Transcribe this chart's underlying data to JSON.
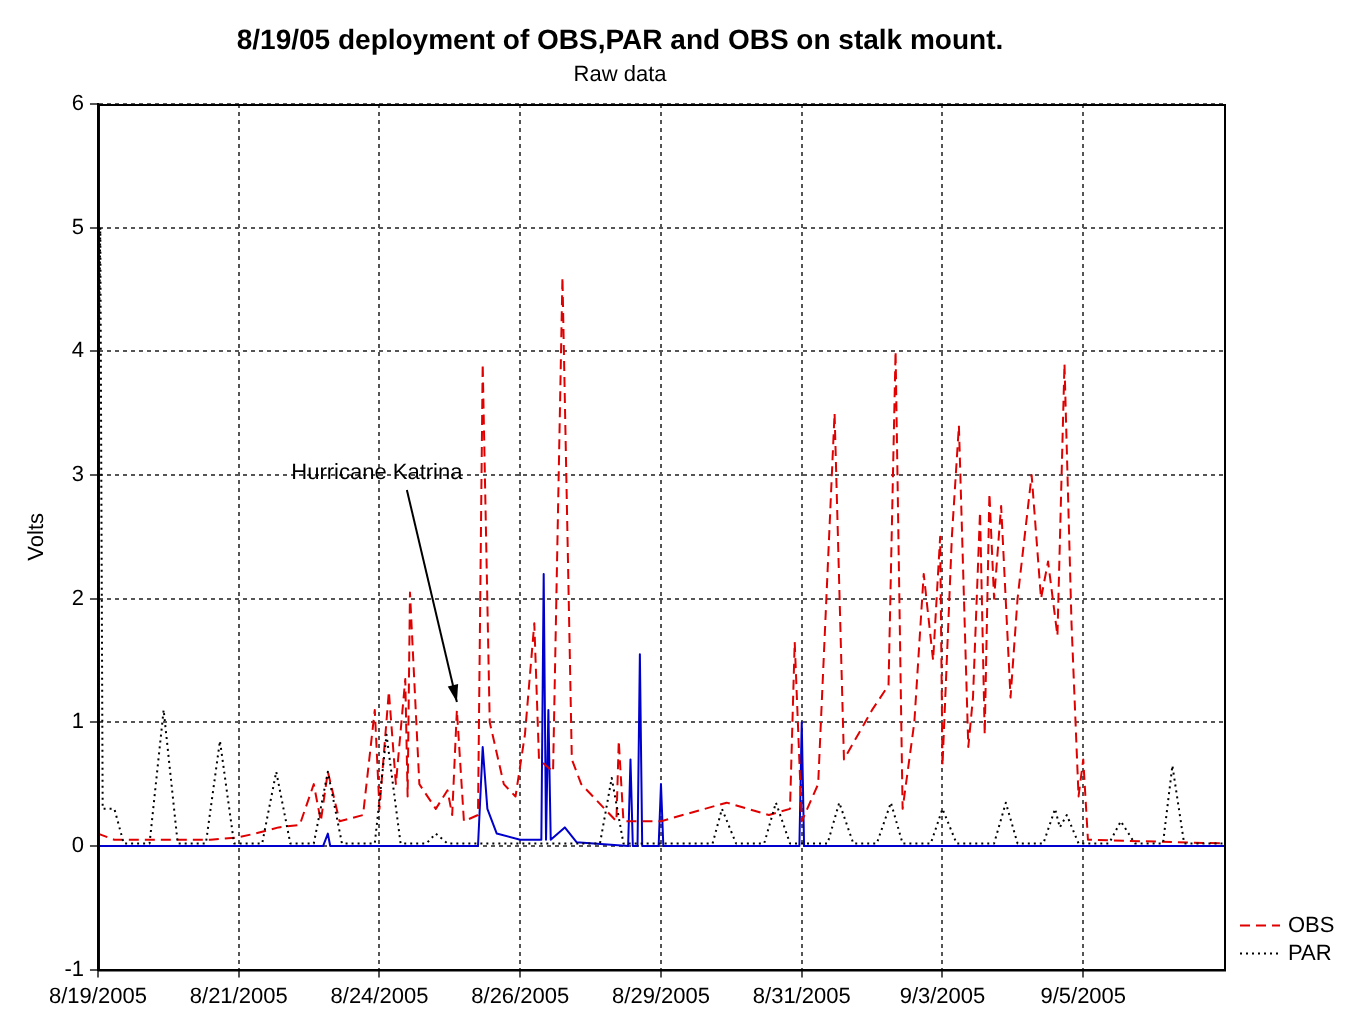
{
  "chart_data": {
    "type": "line",
    "title": "8/19/05 deployment of OBS,PAR and OBS on stalk mount.",
    "subtitle": "Raw data",
    "ylabel": "Volts",
    "xlim": [
      "2005-08-19",
      "2005-09-08"
    ],
    "xticks": [
      {
        "value": "2005-08-19T00:00",
        "label": "8/19/2005"
      },
      {
        "value": "2005-08-21T12:00",
        "label": "8/21/2005"
      },
      {
        "value": "2005-08-24T00:00",
        "label": "8/24/2005"
      },
      {
        "value": "2005-08-26T12:00",
        "label": "8/26/2005"
      },
      {
        "value": "2005-08-29T00:00",
        "label": "8/29/2005"
      },
      {
        "value": "2005-08-31T12:00",
        "label": "8/31/2005"
      },
      {
        "value": "2005-09-03T00:00",
        "label": "9/3/2005"
      },
      {
        "value": "2005-09-05T12:00",
        "label": "9/5/2005"
      }
    ],
    "ylim": [
      -1,
      6
    ],
    "yticks": [
      -1,
      0,
      1,
      2,
      3,
      4,
      5,
      6
    ],
    "grid": true,
    "legend": "bottom right",
    "marker": "none",
    "annotations": [
      {
        "text": "Hurricane Katrina",
        "x": "2005-08-25T09:00",
        "y": 1.1
      }
    ],
    "series": [
      {
        "color": "#0000cc",
        "line_style": "solid",
        "x": [
          "2005-08-19T00:00",
          "2005-08-23T00:00",
          "2005-08-23T02:00",
          "2005-08-23T03:00",
          "2005-08-25T18:00",
          "2005-08-25T20:00",
          "2005-08-25T22:00",
          "2005-08-26T02:00",
          "2005-08-26T12:00",
          "2005-08-26T21:00",
          "2005-08-26T22:00",
          "2005-08-26T23:00",
          "2005-08-27T00:00",
          "2005-08-27T01:00",
          "2005-08-27T07:00",
          "2005-08-27T12:00",
          "2005-08-28T10:00",
          "2005-08-28T11:00",
          "2005-08-28T12:00",
          "2005-08-28T14:00",
          "2005-08-28T15:00",
          "2005-08-28T16:00",
          "2005-08-28T23:00",
          "2005-08-29T00:00",
          "2005-08-29T01:00",
          "2005-08-31T11:00",
          "2005-08-31T12:00",
          "2005-08-31T13:00",
          "2005-09-08T00:00"
        ],
        "values": [
          0,
          0,
          0.1,
          0,
          0,
          0.8,
          0.3,
          0.1,
          0.05,
          0.05,
          2.2,
          0.05,
          1.1,
          0.05,
          0.15,
          0.03,
          0,
          0.7,
          0,
          0,
          1.55,
          0,
          0,
          0.5,
          0,
          0,
          1.0,
          0,
          0
        ]
      },
      {
        "name": "OBS",
        "color": "#e00000",
        "line_style": "dashed",
        "x": [
          "2005-08-19T00:00",
          "2005-08-19T07:00",
          "2005-08-20T00:00",
          "2005-08-21T00:00",
          "2005-08-21T12:00",
          "2005-08-21T19:00",
          "2005-08-22T05:00",
          "2005-08-22T14:00",
          "2005-08-22T20:00",
          "2005-08-22T23:00",
          "2005-08-23T02:00",
          "2005-08-23T07:00",
          "2005-08-23T17:00",
          "2005-08-23T22:00",
          "2005-08-24T00:00",
          "2005-08-24T04:00",
          "2005-08-24T07:00",
          "2005-08-24T11:00",
          "2005-08-24T12:00",
          "2005-08-24T13:00",
          "2005-08-24T17:00",
          "2005-08-25T00:00",
          "2005-08-25T05:00",
          "2005-08-25T07:00",
          "2005-08-25T09:00",
          "2005-08-25T12:00",
          "2005-08-25T18:00",
          "2005-08-25T20:00",
          "2005-08-25T23:00",
          "2005-08-26T05:00",
          "2005-08-26T10:00",
          "2005-08-26T14:00",
          "2005-08-26T18:00",
          "2005-08-26T20:00",
          "2005-08-27T02:00",
          "2005-08-27T06:00",
          "2005-08-27T10:00",
          "2005-08-27T14:00",
          "2005-08-28T00:00",
          "2005-08-28T05:00",
          "2005-08-28T06:00",
          "2005-08-28T08:00",
          "2005-08-29T00:00",
          "2005-08-30T04:00",
          "2005-08-30T22:00",
          "2005-08-31T07:00",
          "2005-08-31T09:00",
          "2005-08-31T12:00",
          "2005-08-31T19:00",
          "2005-09-01T02:00",
          "2005-09-01T06:00",
          "2005-09-01T18:00",
          "2005-09-02T01:00",
          "2005-09-02T04:00",
          "2005-09-02T07:00",
          "2005-09-02T12:00",
          "2005-09-02T16:00",
          "2005-09-02T20:00",
          "2005-09-02T23:00",
          "2005-09-03T00:00",
          "2005-09-03T04:00",
          "2005-09-03T07:00",
          "2005-09-03T11:00",
          "2005-09-03T13:00",
          "2005-09-03T16:00",
          "2005-09-03T18:00",
          "2005-09-03T20:00",
          "2005-09-03T22:00",
          "2005-09-04T01:00",
          "2005-09-04T05:00",
          "2005-09-04T08:00",
          "2005-09-04T11:00",
          "2005-09-04T14:00",
          "2005-09-04T18:00",
          "2005-09-04T21:00",
          "2005-09-05T01:00",
          "2005-09-05T04:00",
          "2005-09-05T07:00",
          "2005-09-05T10:00",
          "2005-09-05T12:00",
          "2005-09-05T14:00",
          "2005-09-08T00:00"
        ],
        "values": [
          0.1,
          0.05,
          0.05,
          0.05,
          0.07,
          0.1,
          0.15,
          0.17,
          0.5,
          0.2,
          0.6,
          0.2,
          0.25,
          1.1,
          0.3,
          1.25,
          0.5,
          1.35,
          0.4,
          2.05,
          0.5,
          0.3,
          0.45,
          0.25,
          1.1,
          0.2,
          0.25,
          3.9,
          1.0,
          0.5,
          0.4,
          0.9,
          1.8,
          0.7,
          0.6,
          4.6,
          0.7,
          0.5,
          0.3,
          0.2,
          0.85,
          0.2,
          0.2,
          0.35,
          0.25,
          0.3,
          1.65,
          0.2,
          0.5,
          3.5,
          0.7,
          1.1,
          1.3,
          4.0,
          0.3,
          1.0,
          2.2,
          1.5,
          2.5,
          0.65,
          2.5,
          3.4,
          0.8,
          1.2,
          2.7,
          0.9,
          2.85,
          2.0,
          2.75,
          1.2,
          2.0,
          2.5,
          3.0,
          2.0,
          2.3,
          1.7,
          3.9,
          1.8,
          0.4,
          0.7,
          0.05,
          0.02
        ]
      },
      {
        "name": "PAR",
        "color": "#000000",
        "line_style": "dotted",
        "x": [
          "2005-08-19T00:00",
          "2005-08-19T01:00",
          "2005-08-19T02:00",
          "2005-08-19T07:00",
          "2005-08-19T11:00",
          "2005-08-19T22:00",
          "2005-08-20T04:00",
          "2005-08-20T10:00",
          "2005-08-20T22:00",
          "2005-08-21T04:00",
          "2005-08-21T10:00",
          "2005-08-21T22:00",
          "2005-08-22T04:00",
          "2005-08-22T10:00",
          "2005-08-22T20:00",
          "2005-08-23T02:00",
          "2005-08-23T08:00",
          "2005-08-23T22:00",
          "2005-08-24T03:00",
          "2005-08-24T09:00",
          "2005-08-24T20:00",
          "2005-08-25T00:00",
          "2005-08-25T05:00",
          "2005-08-27T22:00",
          "2005-08-28T03:00",
          "2005-08-28T08:00",
          "2005-08-29T22:00",
          "2005-08-30T02:00",
          "2005-08-30T08:00",
          "2005-08-30T20:00",
          "2005-08-31T01:00",
          "2005-08-31T07:00",
          "2005-08-31T23:00",
          "2005-09-01T04:00",
          "2005-09-01T10:00",
          "2005-09-01T20:00",
          "2005-09-02T02:00",
          "2005-09-02T07:00",
          "2005-09-02T19:00",
          "2005-09-03T00:00",
          "2005-09-03T06:00",
          "2005-09-03T22:00",
          "2005-09-04T03:00",
          "2005-09-04T08:00",
          "2005-09-04T19:00",
          "2005-09-05T00:00",
          "2005-09-05T02:00",
          "2005-09-05T05:00",
          "2005-09-05T10:00",
          "2005-09-05T23:00",
          "2005-09-06T04:00",
          "2005-09-06T10:00",
          "2005-09-06T22:00",
          "2005-09-07T02:00",
          "2005-09-07T07:00",
          "2005-09-08T00:00"
        ],
        "values": [
          3.4,
          5.0,
          0.3,
          0.3,
          0.02,
          0.02,
          1.1,
          0.02,
          0.02,
          0.85,
          0.02,
          0.02,
          0.6,
          0.02,
          0.02,
          0.6,
          0.02,
          0.02,
          0.9,
          0.02,
          0.02,
          0.1,
          0.02,
          0.02,
          0.55,
          0.02,
          0.02,
          0.3,
          0.02,
          0.02,
          0.35,
          0.02,
          0.02,
          0.35,
          0.02,
          0.02,
          0.35,
          0.02,
          0.02,
          0.3,
          0.02,
          0.02,
          0.35,
          0.02,
          0.02,
          0.3,
          0.15,
          0.25,
          0.02,
          0.02,
          0.2,
          0.02,
          0.02,
          0.65,
          0.02,
          0.02
        ]
      }
    ]
  }
}
